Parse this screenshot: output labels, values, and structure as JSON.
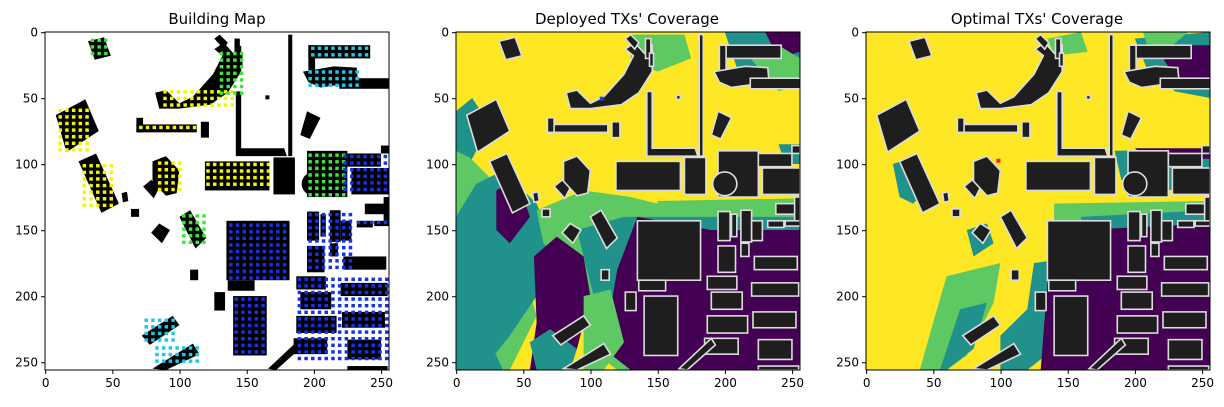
{
  "figure": {
    "panels": [
      {
        "id": "building",
        "title": "Building Map"
      },
      {
        "id": "deployed",
        "title": "Deployed TXs' Coverage"
      },
      {
        "id": "optimal",
        "title": "Optimal TXs' Coverage"
      }
    ]
  },
  "chart_data": [
    {
      "type": "heatmap",
      "title": "Building Map",
      "xlabel": "",
      "ylabel": "",
      "xlim": [
        0,
        255
      ],
      "ylim": [
        255,
        0
      ],
      "xticks": [
        0,
        50,
        100,
        150,
        200,
        250
      ],
      "yticks": [
        0,
        50,
        100,
        150,
        200,
        250
      ],
      "colors": {
        "background": "#ffffff",
        "building": "#000000",
        "grid_yellow": "#f5f500",
        "grid_green": "#3ce63c",
        "grid_cyan": "#1ec8e6",
        "grid_blue": "#1432e6"
      }
    },
    {
      "type": "heatmap",
      "title": "Deployed TXs' Coverage",
      "xlabel": "",
      "ylabel": "",
      "xlim": [
        0,
        255
      ],
      "ylim": [
        255,
        0
      ],
      "xticks": [
        0,
        50,
        100,
        150,
        200,
        250
      ],
      "yticks": [
        0,
        50,
        100,
        150,
        200,
        250
      ],
      "colors": {
        "strong": "#fde725",
        "good": "#5ec962",
        "medium": "#21918c",
        "weak": "#440154",
        "building": "#1e1e1e",
        "tx_marker": "#1e3cff"
      }
    },
    {
      "type": "heatmap",
      "title": "Optimal TXs' Coverage",
      "xlabel": "",
      "ylabel": "",
      "xlim": [
        0,
        255
      ],
      "ylim": [
        255,
        0
      ],
      "xticks": [
        0,
        50,
        100,
        150,
        200,
        250
      ],
      "yticks": [
        0,
        50,
        100,
        150,
        200,
        250
      ],
      "colors": {
        "strong": "#fde725",
        "good": "#5ec962",
        "medium": "#21918c",
        "weak": "#440154",
        "building": "#1e1e1e",
        "tx_marker": "#ff1e1e"
      }
    }
  ]
}
